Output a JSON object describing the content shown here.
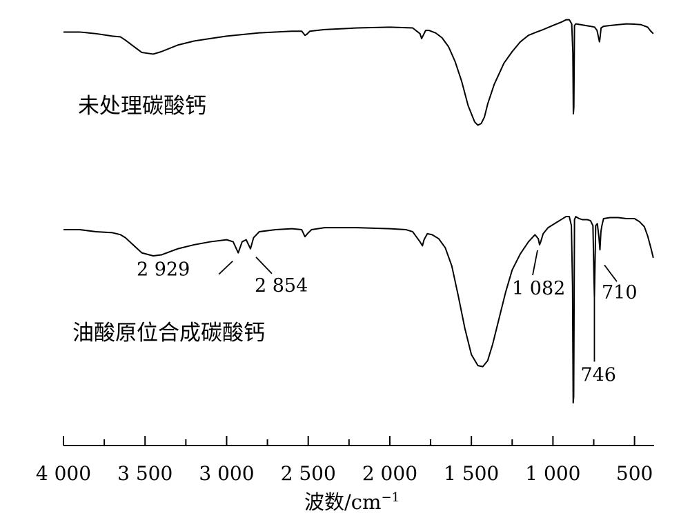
{
  "chart_data": {
    "type": "line",
    "title": "",
    "xlabel_main": "波数",
    "xlabel_unit": "/cm",
    "xlabel_sup": "−1",
    "xlim": [
      4000,
      380
    ],
    "xticks": [
      {
        "value": 4000,
        "label": "4 000"
      },
      {
        "value": 3500,
        "label": "3 500"
      },
      {
        "value": 3000,
        "label": "3 000"
      },
      {
        "value": 2500,
        "label": "2 500"
      },
      {
        "value": 2000,
        "label": "2 000"
      },
      {
        "value": 1500,
        "label": "1 500"
      },
      {
        "value": 1000,
        "label": "1 000"
      },
      {
        "value": 500,
        "label": "500"
      }
    ],
    "series": [
      {
        "name": "未处理碳酸钙",
        "points": [
          [
            4000,
            0.88
          ],
          [
            3900,
            0.88
          ],
          [
            3800,
            0.87
          ],
          [
            3700,
            0.855
          ],
          [
            3650,
            0.85
          ],
          [
            3620,
            0.83
          ],
          [
            3580,
            0.8
          ],
          [
            3520,
            0.755
          ],
          [
            3450,
            0.745
          ],
          [
            3400,
            0.76
          ],
          [
            3300,
            0.8
          ],
          [
            3200,
            0.825
          ],
          [
            3100,
            0.84
          ],
          [
            3000,
            0.855
          ],
          [
            2800,
            0.875
          ],
          [
            2600,
            0.885
          ],
          [
            2540,
            0.885
          ],
          [
            2520,
            0.86
          ],
          [
            2510,
            0.865
          ],
          [
            2490,
            0.885
          ],
          [
            2400,
            0.895
          ],
          [
            2200,
            0.905
          ],
          [
            2000,
            0.91
          ],
          [
            1860,
            0.905
          ],
          [
            1815,
            0.87
          ],
          [
            1805,
            0.84
          ],
          [
            1795,
            0.86
          ],
          [
            1780,
            0.89
          ],
          [
            1760,
            0.89
          ],
          [
            1720,
            0.875
          ],
          [
            1680,
            0.845
          ],
          [
            1640,
            0.79
          ],
          [
            1600,
            0.7
          ],
          [
            1560,
            0.58
          ],
          [
            1520,
            0.43
          ],
          [
            1480,
            0.33
          ],
          [
            1460,
            0.31
          ],
          [
            1440,
            0.32
          ],
          [
            1420,
            0.36
          ],
          [
            1400,
            0.44
          ],
          [
            1360,
            0.56
          ],
          [
            1300,
            0.69
          ],
          [
            1250,
            0.76
          ],
          [
            1200,
            0.82
          ],
          [
            1150,
            0.86
          ],
          [
            1100,
            0.88
          ],
          [
            1060,
            0.895
          ],
          [
            1000,
            0.92
          ],
          [
            950,
            0.94
          ],
          [
            920,
            0.955
          ],
          [
            900,
            0.955
          ],
          [
            885,
            0.93
          ],
          [
            878,
            0.75
          ],
          [
            875,
            0.38
          ],
          [
            872,
            0.42
          ],
          [
            868,
            0.92
          ],
          [
            860,
            0.93
          ],
          [
            830,
            0.925
          ],
          [
            800,
            0.92
          ],
          [
            770,
            0.915
          ],
          [
            745,
            0.91
          ],
          [
            730,
            0.89
          ],
          [
            715,
            0.82
          ],
          [
            712,
            0.84
          ],
          [
            705,
            0.905
          ],
          [
            690,
            0.915
          ],
          [
            650,
            0.92
          ],
          [
            600,
            0.925
          ],
          [
            550,
            0.93
          ],
          [
            500,
            0.928
          ],
          [
            460,
            0.925
          ],
          [
            420,
            0.91
          ],
          [
            400,
            0.885
          ],
          [
            385,
            0.87
          ]
        ],
        "annotations": []
      },
      {
        "name": "油酸原位合成碳酸钙",
        "points": [
          [
            4000,
            0.88
          ],
          [
            3900,
            0.88
          ],
          [
            3800,
            0.87
          ],
          [
            3700,
            0.865
          ],
          [
            3650,
            0.855
          ],
          [
            3620,
            0.84
          ],
          [
            3580,
            0.81
          ],
          [
            3520,
            0.765
          ],
          [
            3450,
            0.75
          ],
          [
            3400,
            0.755
          ],
          [
            3300,
            0.785
          ],
          [
            3200,
            0.805
          ],
          [
            3100,
            0.82
          ],
          [
            3000,
            0.83
          ],
          [
            2960,
            0.82
          ],
          [
            2929,
            0.765
          ],
          [
            2905,
            0.82
          ],
          [
            2880,
            0.83
          ],
          [
            2854,
            0.785
          ],
          [
            2835,
            0.84
          ],
          [
            2800,
            0.87
          ],
          [
            2700,
            0.88
          ],
          [
            2600,
            0.885
          ],
          [
            2540,
            0.88
          ],
          [
            2520,
            0.845
          ],
          [
            2505,
            0.86
          ],
          [
            2480,
            0.88
          ],
          [
            2400,
            0.89
          ],
          [
            2300,
            0.89
          ],
          [
            2200,
            0.89
          ],
          [
            2000,
            0.885
          ],
          [
            1900,
            0.88
          ],
          [
            1860,
            0.87
          ],
          [
            1815,
            0.82
          ],
          [
            1800,
            0.8
          ],
          [
            1790,
            0.83
          ],
          [
            1770,
            0.86
          ],
          [
            1740,
            0.855
          ],
          [
            1700,
            0.835
          ],
          [
            1660,
            0.79
          ],
          [
            1620,
            0.7
          ],
          [
            1580,
            0.55
          ],
          [
            1540,
            0.39
          ],
          [
            1500,
            0.26
          ],
          [
            1460,
            0.205
          ],
          [
            1430,
            0.2
          ],
          [
            1400,
            0.23
          ],
          [
            1370,
            0.31
          ],
          [
            1330,
            0.44
          ],
          [
            1290,
            0.57
          ],
          [
            1250,
            0.68
          ],
          [
            1200,
            0.76
          ],
          [
            1150,
            0.82
          ],
          [
            1110,
            0.855
          ],
          [
            1090,
            0.835
          ],
          [
            1082,
            0.805
          ],
          [
            1075,
            0.82
          ],
          [
            1060,
            0.86
          ],
          [
            1030,
            0.89
          ],
          [
            1000,
            0.905
          ],
          [
            950,
            0.93
          ],
          [
            920,
            0.945
          ],
          [
            900,
            0.945
          ],
          [
            887,
            0.9
          ],
          [
            880,
            0.6
          ],
          [
            876,
            0.02
          ],
          [
            873,
            0.05
          ],
          [
            868,
            0.93
          ],
          [
            860,
            0.945
          ],
          [
            840,
            0.935
          ],
          [
            820,
            0.93
          ],
          [
            790,
            0.93
          ],
          [
            770,
            0.925
          ],
          [
            755,
            0.9
          ],
          [
            748,
            0.62
          ],
          [
            746,
            0.55
          ],
          [
            744,
            0.63
          ],
          [
            738,
            0.9
          ],
          [
            728,
            0.91
          ],
          [
            718,
            0.84
          ],
          [
            712,
            0.78
          ],
          [
            706,
            0.87
          ],
          [
            700,
            0.9
          ],
          [
            690,
            0.935
          ],
          [
            650,
            0.94
          ],
          [
            600,
            0.94
          ],
          [
            550,
            0.935
          ],
          [
            500,
            0.935
          ],
          [
            470,
            0.92
          ],
          [
            440,
            0.895
          ],
          [
            420,
            0.85
          ],
          [
            400,
            0.79
          ],
          [
            385,
            0.74
          ]
        ],
        "annotations": [
          {
            "x": 2929,
            "label": "2 929"
          },
          {
            "x": 2854,
            "label": "2 854"
          },
          {
            "x": 1082,
            "label": "1 082"
          },
          {
            "x": 746,
            "label": "746"
          },
          {
            "x": 710,
            "label": "710"
          }
        ]
      }
    ],
    "ylim": [
      0,
      1
    ],
    "grid": false,
    "legend": "none"
  }
}
